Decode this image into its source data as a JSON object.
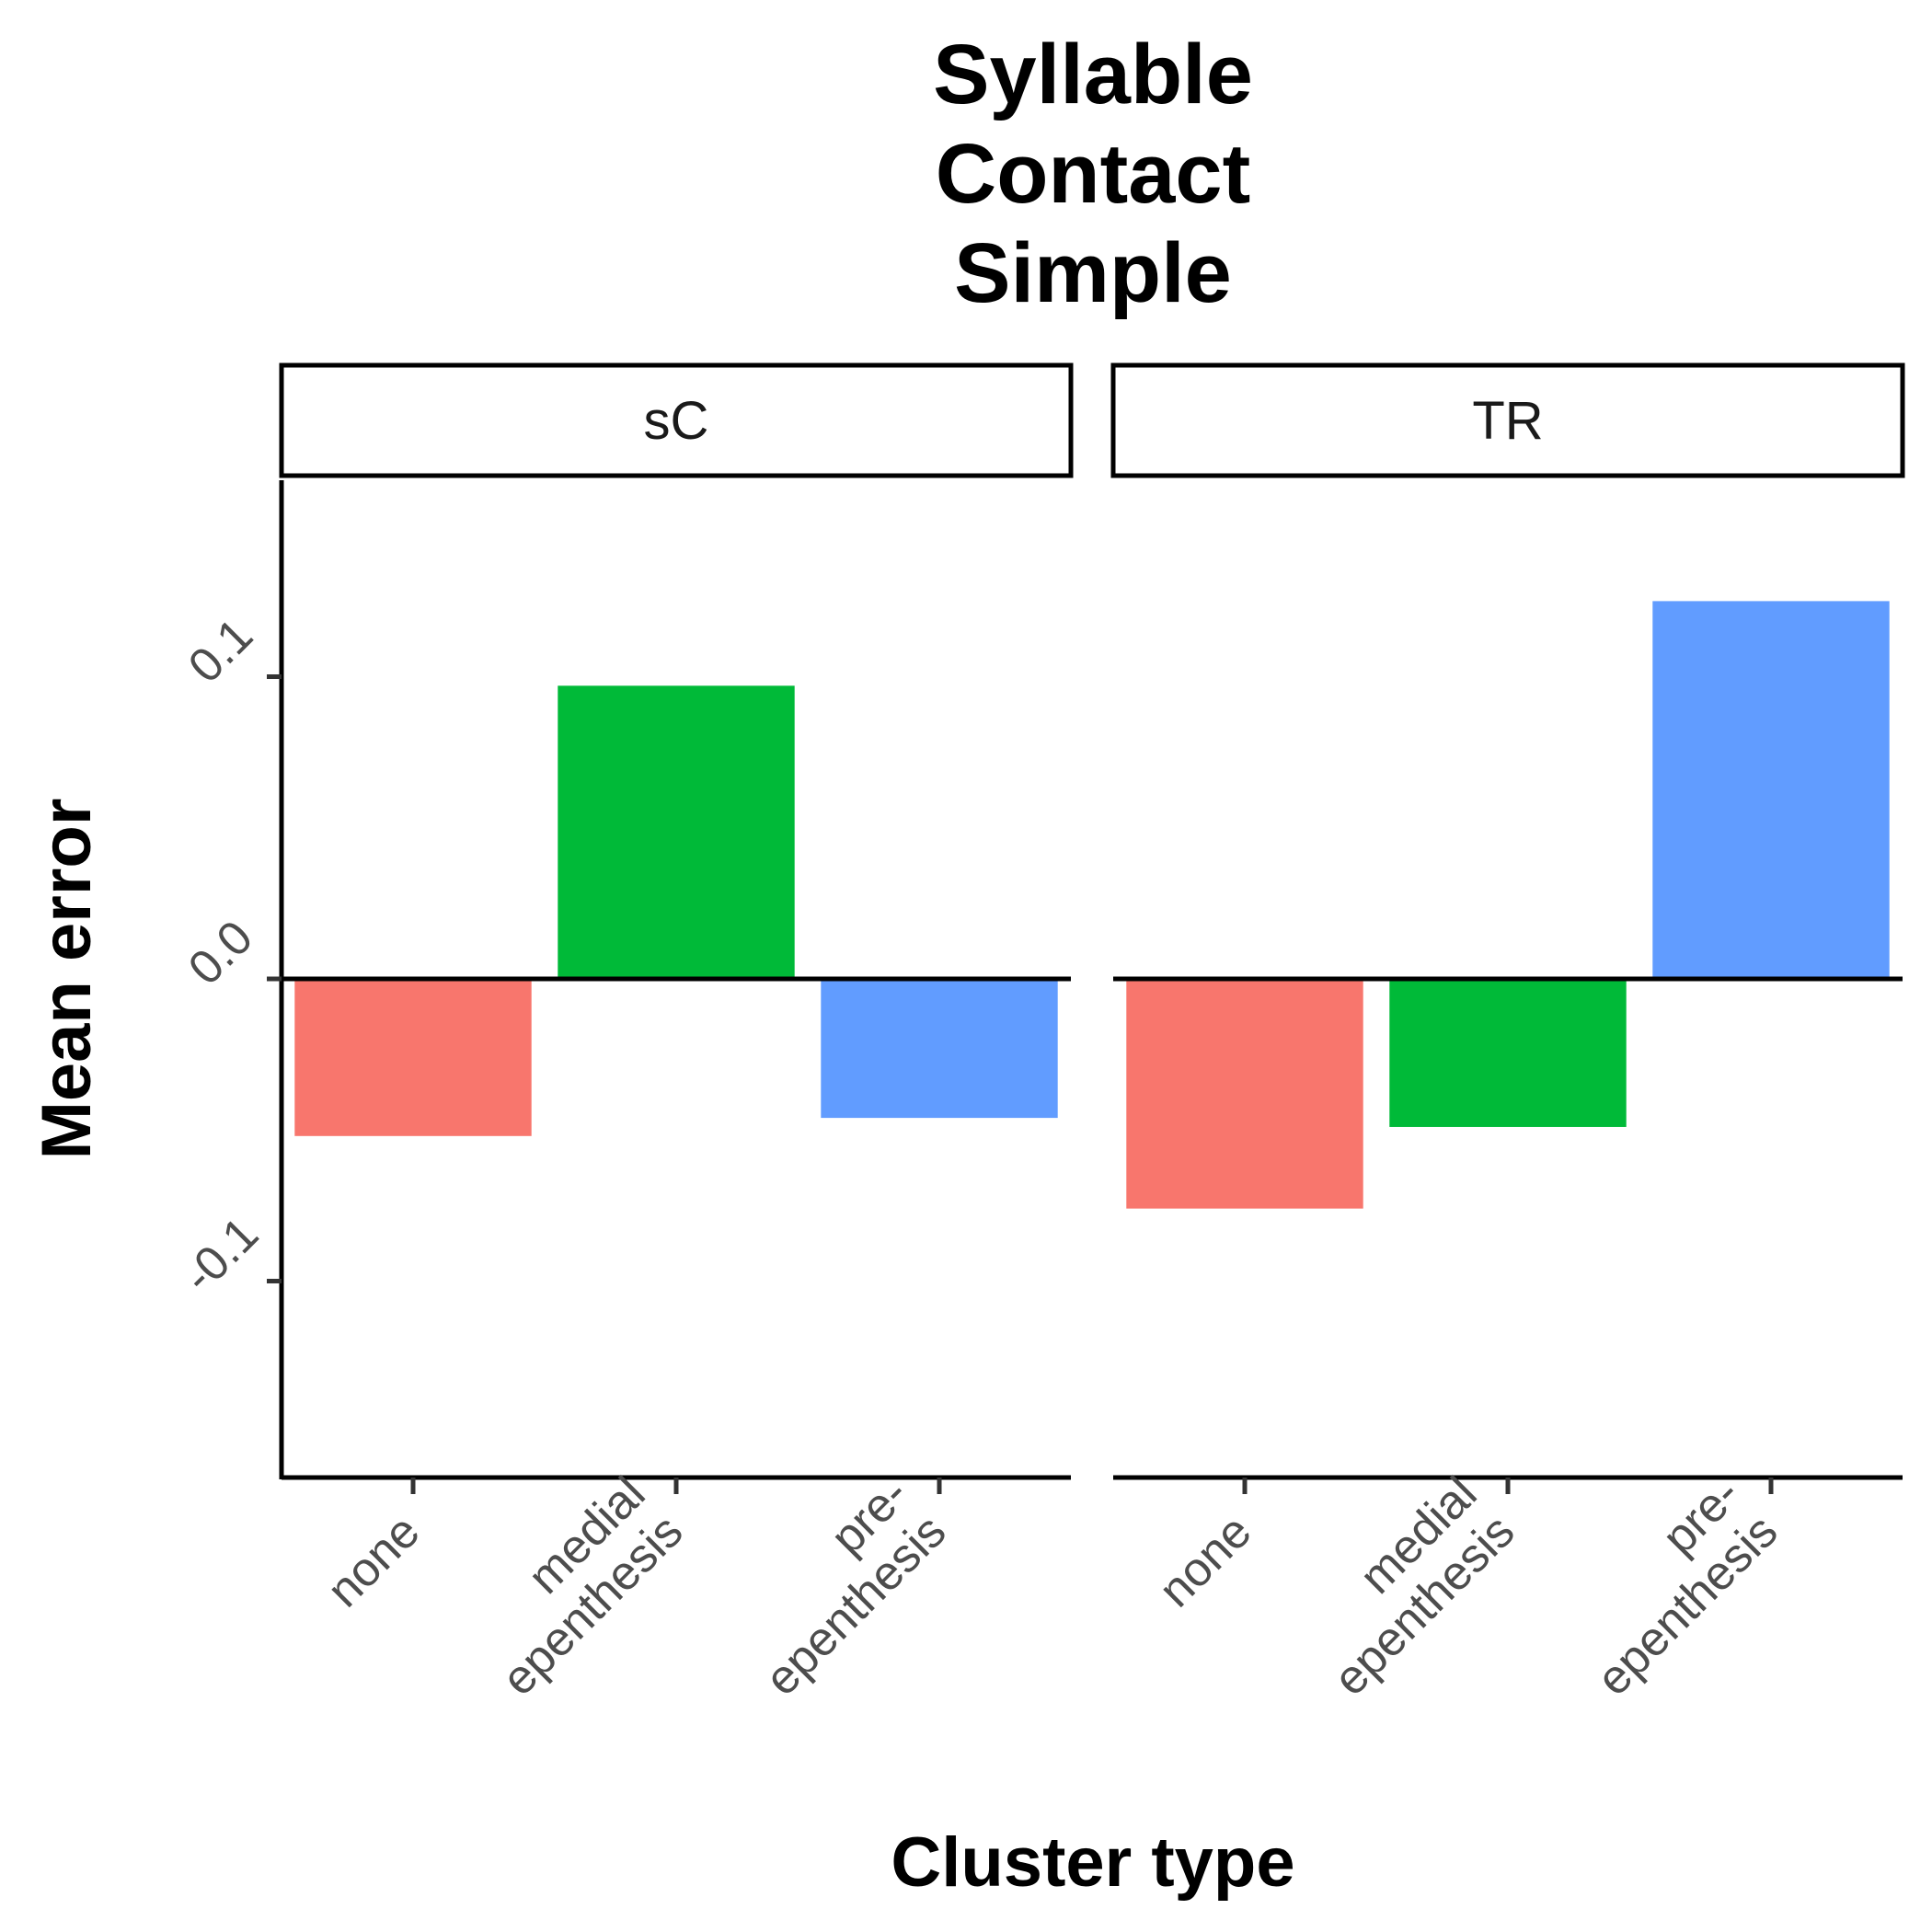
{
  "chart_data": {
    "type": "bar",
    "title_lines": [
      "Syllable",
      "Contact",
      "Simple"
    ],
    "xlabel": "Cluster type",
    "ylabel": "Mean error",
    "ylim": [
      -0.165,
      0.165
    ],
    "yticks": [
      {
        "value": 0.1,
        "label": "0.1"
      },
      {
        "value": 0.0,
        "label": "0.0"
      },
      {
        "value": -0.1,
        "label": "-0.1"
      }
    ],
    "reference_line": 0,
    "grid": false,
    "legend": "none",
    "categories": [
      {
        "lines": [
          "none"
        ],
        "color": "#F8766D"
      },
      {
        "lines": [
          "medial",
          "epenthesis"
        ],
        "color": "#00BA38"
      },
      {
        "lines": [
          "pre-",
          "epenthesis"
        ],
        "color": "#619CFF"
      }
    ],
    "panels": [
      {
        "name": "sC",
        "values": [
          -0.052,
          0.097,
          -0.046
        ]
      },
      {
        "name": "TR",
        "values": [
          -0.076,
          -0.049,
          0.125
        ]
      }
    ]
  }
}
